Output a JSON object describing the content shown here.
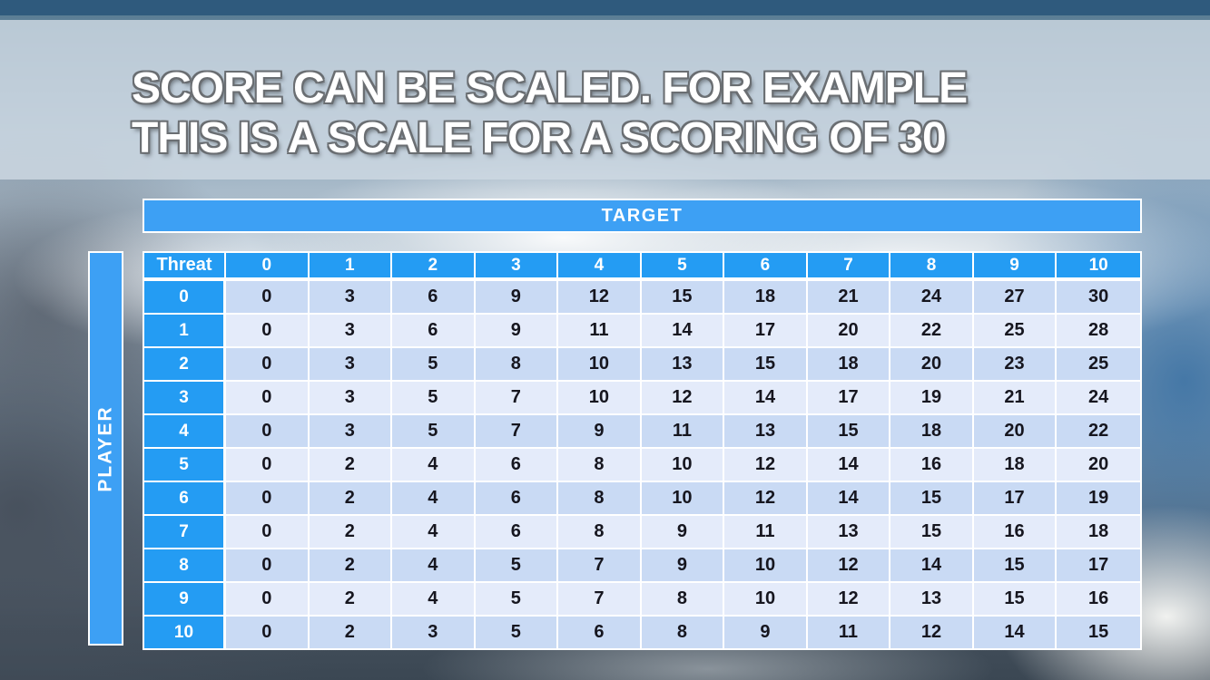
{
  "title": {
    "line1": "SCORE CAN BE SCALED. FOR EXAMPLE",
    "line2": "THIS IS A SCALE FOR A SCORING OF 30"
  },
  "chart_data": {
    "type": "table",
    "title": "Score scale matrix for a scoring of 30",
    "target_label": "TARGET",
    "player_label": "PLAYER",
    "corner_label": "Threat",
    "column_headers": [
      "0",
      "1",
      "2",
      "3",
      "4",
      "5",
      "6",
      "7",
      "8",
      "9",
      "10"
    ],
    "row_headers": [
      "0",
      "1",
      "2",
      "3",
      "4",
      "5",
      "6",
      "7",
      "8",
      "9",
      "10"
    ],
    "matrix": [
      [
        0,
        3,
        6,
        9,
        12,
        15,
        18,
        21,
        24,
        27,
        30
      ],
      [
        0,
        3,
        6,
        9,
        11,
        14,
        17,
        20,
        22,
        25,
        28
      ],
      [
        0,
        3,
        5,
        8,
        10,
        13,
        15,
        18,
        20,
        23,
        25
      ],
      [
        0,
        3,
        5,
        7,
        10,
        12,
        14,
        17,
        19,
        21,
        24
      ],
      [
        0,
        3,
        5,
        7,
        9,
        11,
        13,
        15,
        18,
        20,
        22
      ],
      [
        0,
        2,
        4,
        6,
        8,
        10,
        12,
        14,
        16,
        18,
        20
      ],
      [
        0,
        2,
        4,
        6,
        8,
        10,
        12,
        14,
        15,
        17,
        19
      ],
      [
        0,
        2,
        4,
        6,
        8,
        9,
        11,
        13,
        15,
        16,
        18
      ],
      [
        0,
        2,
        4,
        5,
        7,
        9,
        10,
        12,
        14,
        15,
        17
      ],
      [
        0,
        2,
        4,
        5,
        7,
        8,
        10,
        12,
        13,
        15,
        16
      ],
      [
        0,
        2,
        3,
        5,
        6,
        8,
        9,
        11,
        12,
        14,
        15
      ]
    ],
    "value_range": [
      0,
      30
    ]
  },
  "colors": {
    "top_bar": "#2f5a7d",
    "band_blue": "#3da0f4",
    "header_blue": "#249cf3",
    "row_even": "#c9daf4",
    "row_odd": "#e4ebfa",
    "grid_line": "#ffffff",
    "body_text": "#16161f",
    "title_text": "#ffffff"
  }
}
